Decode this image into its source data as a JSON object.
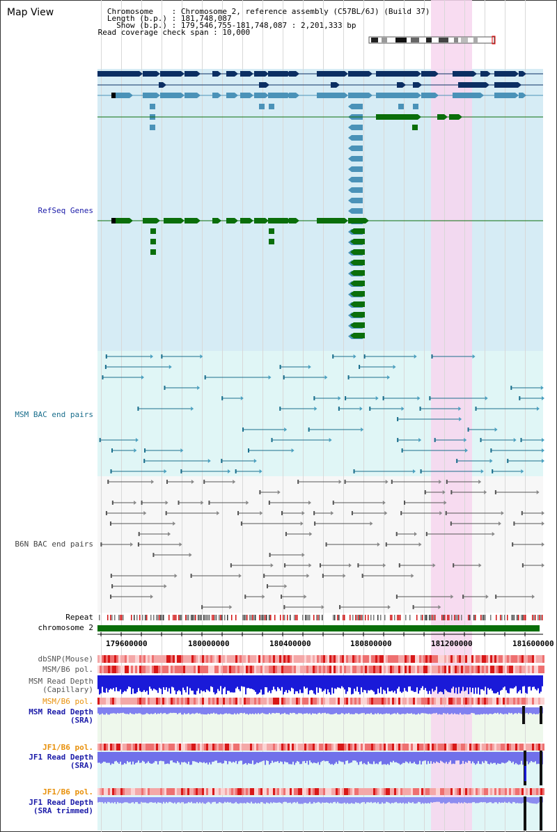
{
  "header": {
    "title": "Map View",
    "info_lines": [
      "   Chromosome    : Chromosome 2, reference assembly (C57BL/6J) (Build 37)",
      "   Length (b.p.) : 181,748,087",
      "     Show (b.p.) : 179,546,755-181,748,087 : 2,201,333 bp",
      " Read coverage check span : 10,000"
    ]
  },
  "tracks": {
    "refseq": "RefSeq Genes",
    "msm_bac": "MSM BAC end pairs",
    "b6n_bac": "B6N BAC end pairs",
    "repeat": "Repeat",
    "chromosome": "chromosome 2",
    "dbsnp": "dbSNP(Mouse)",
    "msm_pol_1": "MSM/B6 pol.",
    "msm_depth_cap": "MSM Read Depth\n(Capillary)",
    "msm_pol_2": "MSM/B6 pol.",
    "msm_depth_sra": "MSM Read Depth\n(SRA)",
    "jf1_pol_1": "JF1/B6 pol.",
    "jf1_depth_sra": "JF1 Read Depth\n(SRA)",
    "jf1_pol_2": "JF1/B6 pol.",
    "jf1_depth_trim": "JF1 Read Depth\n(SRA trimmed)"
  },
  "axis": {
    "ticks": [
      "179600000",
      "180000000",
      "180400000",
      "180800000",
      "181200000",
      "181600000"
    ]
  },
  "colors": {
    "refseq_bg": "#d6ecf5",
    "msm_bg": "#e0f6f6",
    "b6n_bg": "#f6f6f6",
    "highlight": "#f7d6ef",
    "dark_blue": "#0b2e62",
    "mid_blue": "#4a92b8",
    "green": "#0a6e0a",
    "label_blue": "#1a1aa8",
    "label_orange": "#e8900a",
    "msm_teal": "#1a6e8c"
  }
}
